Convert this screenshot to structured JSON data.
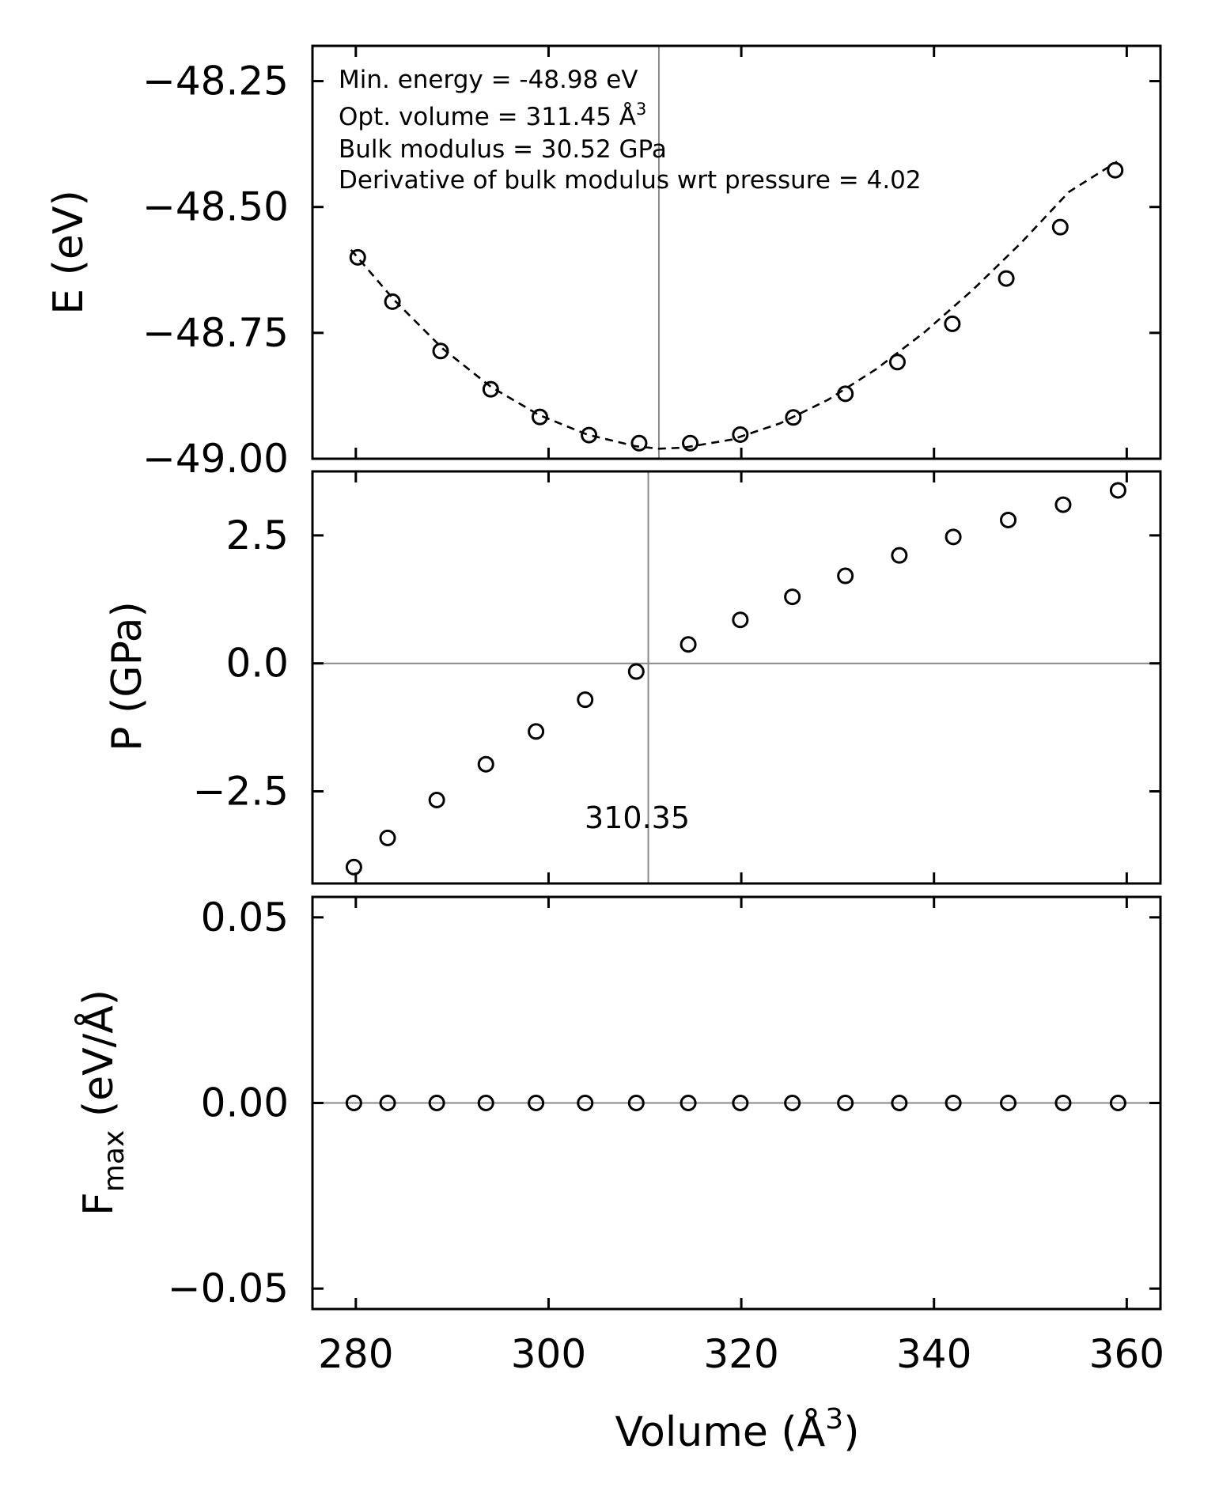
{
  "chart_data": [
    {
      "type": "line",
      "name": "energy-panel",
      "ylabel": "E (eV)",
      "xlim": [
        275.5,
        363.5
      ],
      "ylim": [
        -49.0,
        -48.18
      ],
      "yticks": [
        -48.25,
        -48.5,
        -48.75,
        -49.0
      ],
      "ytick_labels": [
        "−48.25",
        "−48.50",
        "−48.75",
        "−49.00"
      ],
      "series": [
        {
          "name": "calculated",
          "marker": "open-circle",
          "x": [
            280.2,
            283.8,
            288.8,
            294.0,
            299.1,
            304.2,
            309.4,
            314.7,
            319.9,
            325.4,
            330.8,
            336.2,
            341.9,
            347.5,
            353.1,
            358.8
          ],
          "y": [
            -48.6,
            -48.688,
            -48.786,
            -48.862,
            -48.917,
            -48.953,
            -48.969,
            -48.969,
            -48.952,
            -48.918,
            -48.871,
            -48.808,
            -48.732,
            -48.642,
            -48.54,
            -48.427
          ]
        },
        {
          "name": "eos-fit",
          "style": "dashed",
          "x": [
            279.5,
            284,
            289,
            294,
            299,
            304,
            309,
            311.45,
            314,
            319,
            324,
            329,
            334,
            339,
            344,
            349,
            354,
            359
          ],
          "y": [
            -48.585,
            -48.685,
            -48.781,
            -48.857,
            -48.913,
            -48.952,
            -48.975,
            -48.98,
            -48.978,
            -48.962,
            -48.93,
            -48.883,
            -48.822,
            -48.749,
            -48.665,
            -48.572,
            -48.47,
            -48.41
          ]
        }
      ],
      "vline_x": 311.45,
      "annotations": [
        "Min. energy = -48.98 eV",
        "Opt. volume = 311.45 Å",
        "Bulk modulus = 30.52 GPa",
        "Derivative of bulk modulus wrt pressure = 4.02"
      ],
      "annotation_superscript": "3"
    },
    {
      "type": "scatter",
      "name": "pressure-panel",
      "ylabel": "P (GPa)",
      "xlim": [
        275.5,
        363.5
      ],
      "ylim": [
        -4.3,
        3.75
      ],
      "yticks": [
        2.5,
        0.0,
        -2.5
      ],
      "ytick_labels": [
        "2.5",
        "0.0",
        "−2.5"
      ],
      "series": [
        {
          "name": "pressure",
          "marker": "open-circle",
          "x": [
            279.8,
            283.3,
            288.4,
            293.5,
            298.7,
            303.8,
            309.1,
            314.5,
            319.9,
            325.3,
            330.8,
            336.4,
            342.0,
            347.7,
            353.4,
            359.1
          ],
          "y": [
            -3.98,
            -3.41,
            -2.67,
            -1.97,
            -1.33,
            -0.71,
            -0.16,
            0.37,
            0.85,
            1.3,
            1.71,
            2.11,
            2.47,
            2.8,
            3.1,
            3.38
          ]
        }
      ],
      "vline_x": 310.35,
      "hline_y": 0.0,
      "vline_label": "310.35"
    },
    {
      "type": "scatter",
      "name": "force-panel",
      "ylabel": "F",
      "ylabel_sub": "max",
      "ylabel_units": " (eV/Å)",
      "xlabel": "Volume (Å",
      "xlabel_sup": "3",
      "xlabel_close": ")",
      "xlim": [
        275.5,
        363.5
      ],
      "ylim": [
        -0.0555,
        0.0555
      ],
      "yticks": [
        0.05,
        0.0,
        -0.05
      ],
      "ytick_labels": [
        "0.05",
        "0.00",
        "−0.05"
      ],
      "xticks": [
        280,
        300,
        320,
        340,
        360
      ],
      "xtick_labels": [
        "280",
        "300",
        "320",
        "340",
        "360"
      ],
      "series": [
        {
          "name": "max-force",
          "marker": "open-circle",
          "x": [
            279.8,
            283.3,
            288.4,
            293.5,
            298.7,
            303.8,
            309.1,
            314.5,
            319.9,
            325.3,
            330.8,
            336.4,
            342.0,
            347.7,
            353.4,
            359.1
          ],
          "y": [
            0,
            0,
            0,
            0,
            0,
            0,
            0,
            0,
            0,
            0,
            0,
            0,
            0,
            0,
            0,
            0
          ]
        }
      ],
      "hline_y": 0.0
    }
  ]
}
